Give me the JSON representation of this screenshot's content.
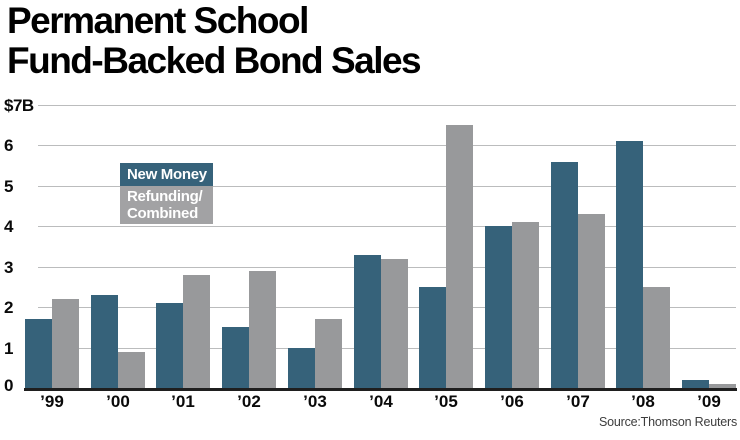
{
  "title": {
    "line1": "Permanent School",
    "line2": "Fund-Backed Bond Sales"
  },
  "legend": {
    "new_money_label": "New Money",
    "refunding_label_line1": "Refunding/",
    "refunding_label_line2": "Combined"
  },
  "source_note": "Source:Thomson Reuters",
  "chart_data": {
    "type": "bar",
    "title": "Permanent School Fund-Backed Bond Sales",
    "categories": [
      "’99",
      "’00",
      "’01",
      "’02",
      "’03",
      "’04",
      "’05",
      "’06",
      "’07",
      "’08",
      "’09"
    ],
    "series": [
      {
        "name": "New Money",
        "color": "#36627a",
        "values": [
          1.7,
          2.3,
          2.1,
          1.5,
          1.0,
          3.3,
          2.5,
          4.0,
          5.6,
          6.1,
          0.2
        ]
      },
      {
        "name": "Refunding/Combined",
        "color": "#98999b",
        "values": [
          2.2,
          0.9,
          2.8,
          2.9,
          1.7,
          3.2,
          6.5,
          4.1,
          4.3,
          2.5,
          0.1
        ]
      }
    ],
    "xlabel": "",
    "ylabel": "",
    "y_axis": {
      "tick_labels": [
        "$7B",
        "6",
        "5",
        "4",
        "3",
        "2",
        "1",
        "0"
      ],
      "tick_values": [
        7,
        6,
        5,
        4,
        3,
        2,
        1,
        0
      ],
      "ylim": [
        0,
        7
      ],
      "units": "billions of dollars"
    },
    "grid": true,
    "legend_position": "inside-upper-left",
    "colors": {
      "new_money_bar": "#36627a",
      "refunding_bar": "#98999b",
      "legend_new_money_bg": "#36627a",
      "legend_refunding_bg": "#a2a2a4",
      "gridline": "#bbbcbd",
      "axis_baseline": "#1f1f1f",
      "title_text": "#000000",
      "source_text": "#3d3d3d"
    },
    "source": "Source:Thomson Reuters"
  }
}
